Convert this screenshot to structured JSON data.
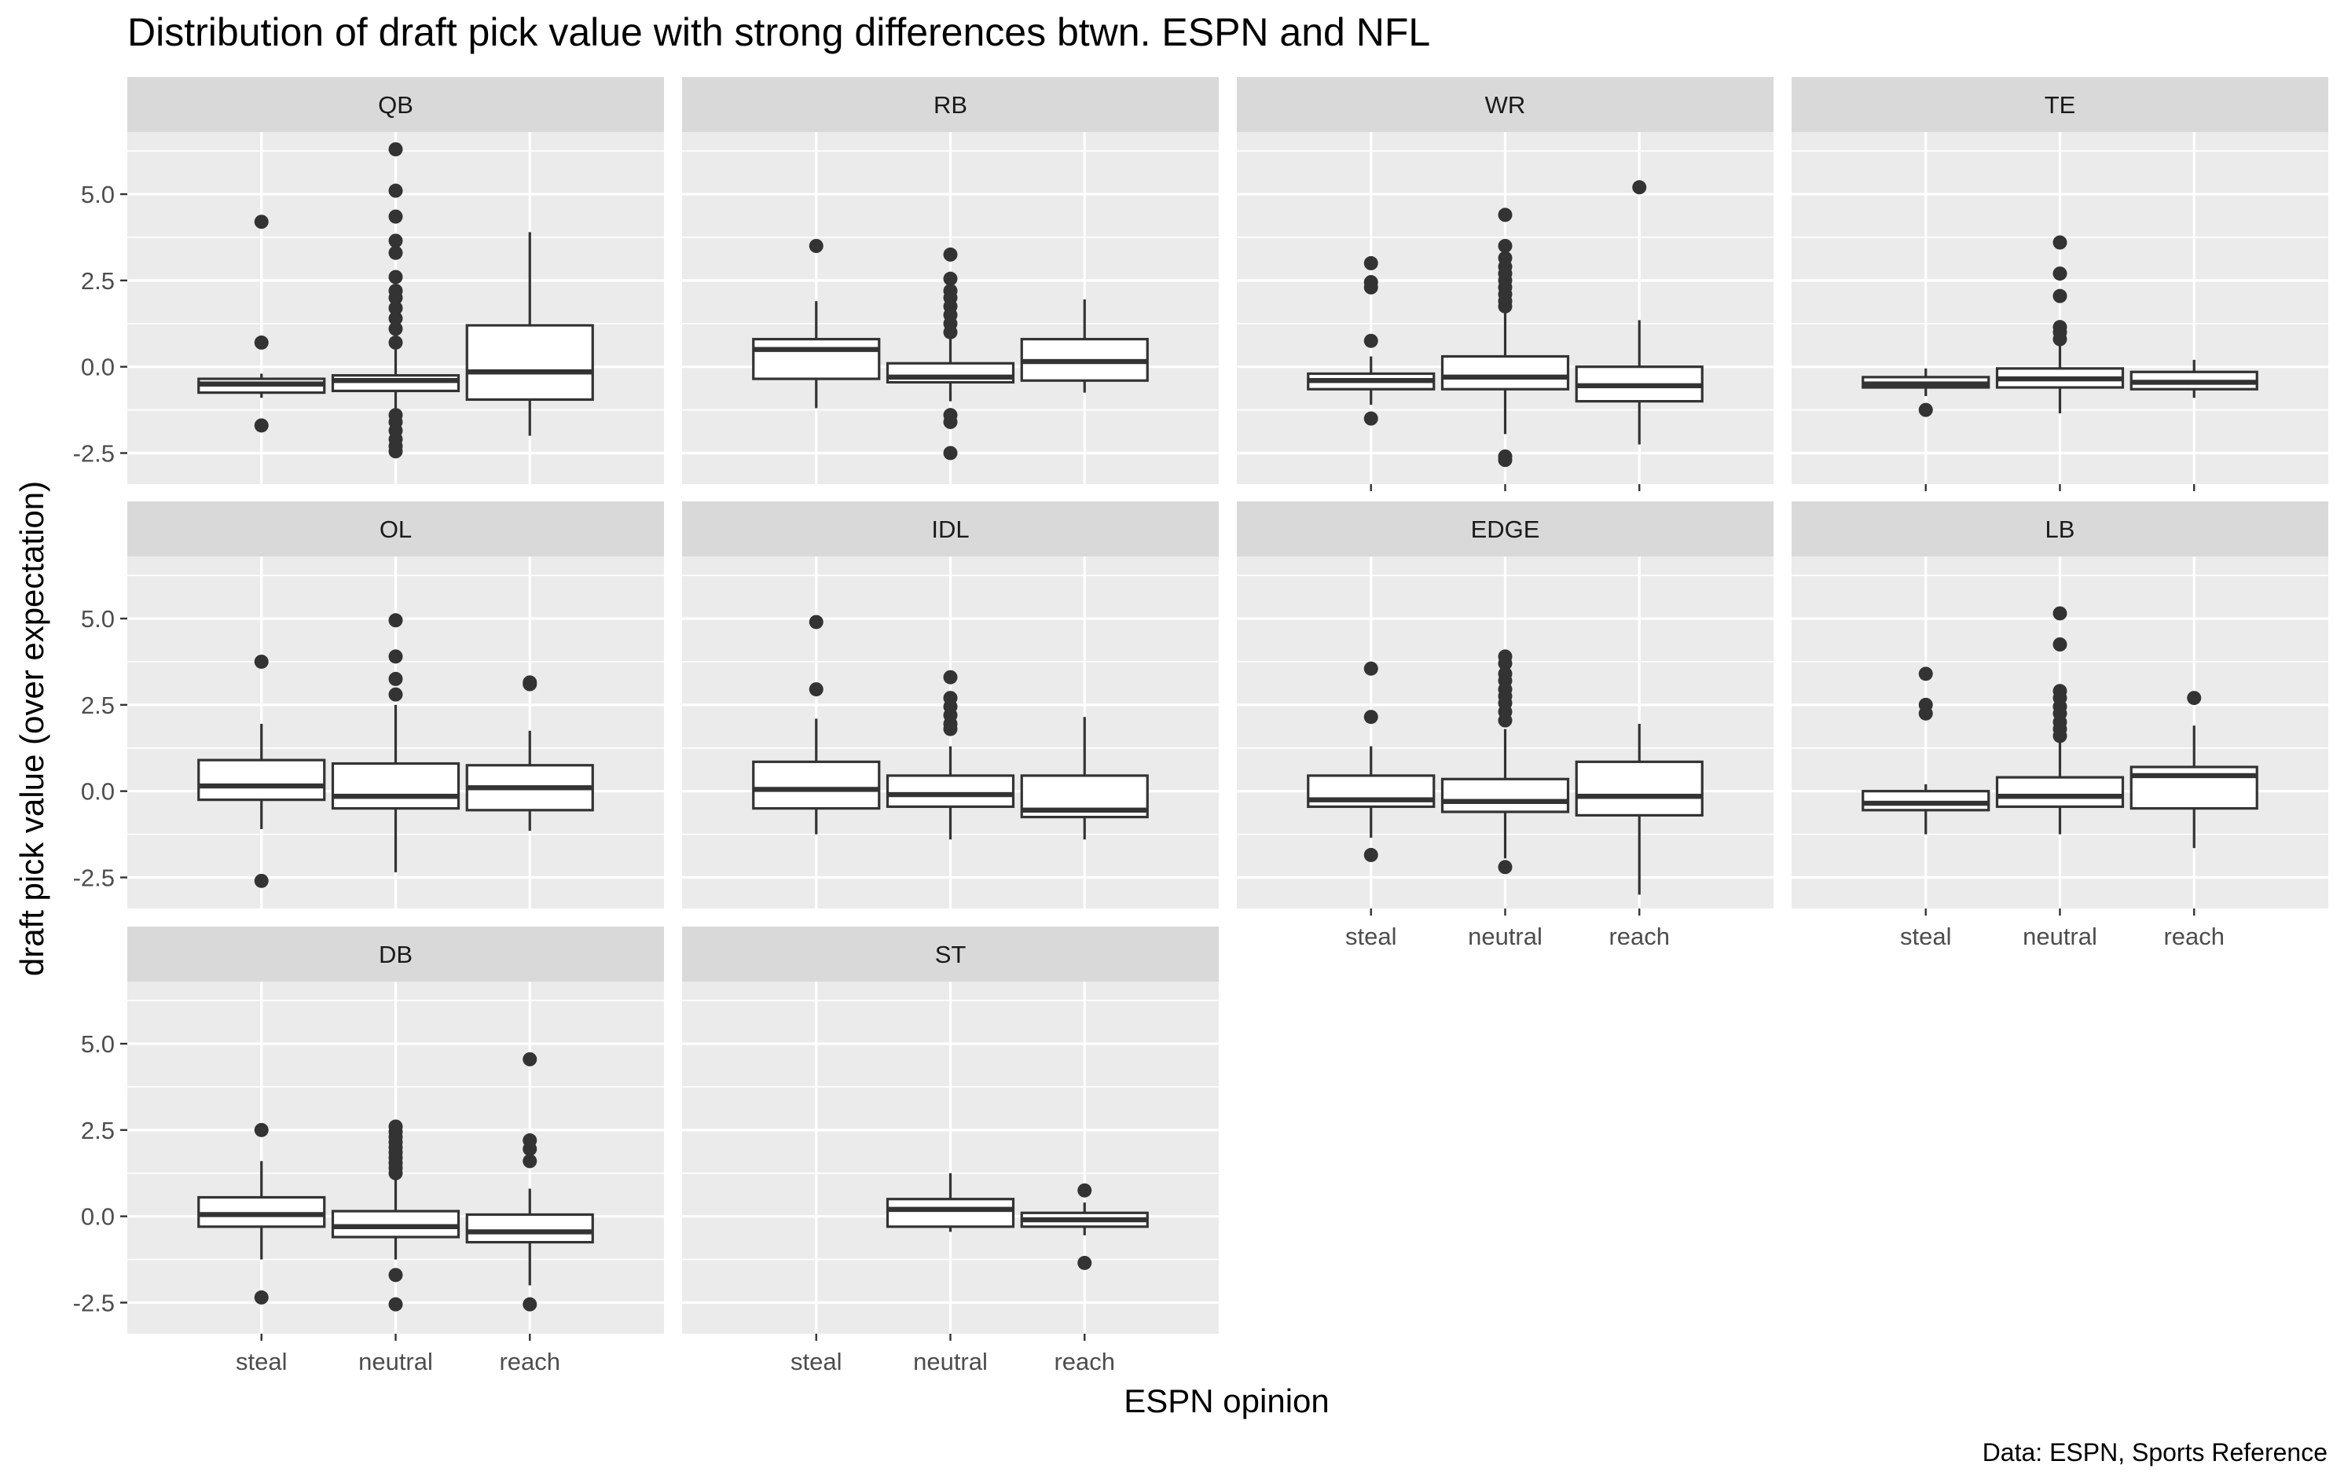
{
  "chart_data": {
    "type": "boxplot",
    "title": "Distribution of draft pick value with strong differences btwn. ESPN and NFL",
    "xlabel": "ESPN opinion",
    "ylabel": "draft pick value (over expectation)",
    "caption": "Data: ESPN, Sports Reference",
    "categories": [
      "steal",
      "neutral",
      "reach"
    ],
    "y_ticks": [
      -2.5,
      0.0,
      2.5,
      5.0
    ],
    "y_tick_labels": [
      "-2.5",
      "0.0",
      "2.5",
      "5.0"
    ],
    "ylim": [
      -3.4,
      6.8
    ],
    "grid": true,
    "facet_layout": {
      "columns": 4,
      "rows": 3
    },
    "facets": [
      {
        "name": "QB",
        "row": 0,
        "col": 0,
        "show_x_labels": false,
        "boxes": [
          {
            "category": "steal",
            "lower_whisker": -0.9,
            "q1": -0.75,
            "median": -0.5,
            "q3": -0.35,
            "upper_whisker": -0.2,
            "outliers": [
              4.2,
              0.7,
              -1.7
            ]
          },
          {
            "category": "neutral",
            "lower_whisker": -1.2,
            "q1": -0.7,
            "median": -0.4,
            "q3": -0.25,
            "upper_whisker": 0.5,
            "outliers": [
              6.3,
              5.1,
              4.35,
              3.65,
              3.3,
              2.6,
              2.2,
              2.0,
              1.7,
              1.4,
              1.1,
              0.7,
              -1.4,
              -1.6,
              -1.85,
              -2.1,
              -2.3,
              -2.45
            ]
          },
          {
            "category": "reach",
            "lower_whisker": -2.0,
            "q1": -0.95,
            "median": -0.15,
            "q3": 1.2,
            "upper_whisker": 3.9,
            "outliers": []
          }
        ]
      },
      {
        "name": "RB",
        "row": 0,
        "col": 1,
        "show_x_labels": false,
        "boxes": [
          {
            "category": "steal",
            "lower_whisker": -1.2,
            "q1": -0.35,
            "median": 0.5,
            "q3": 0.8,
            "upper_whisker": 1.9,
            "outliers": [
              3.5
            ]
          },
          {
            "category": "neutral",
            "lower_whisker": -1.0,
            "q1": -0.45,
            "median": -0.3,
            "q3": 0.1,
            "upper_whisker": 0.8,
            "outliers": [
              3.25,
              2.55,
              2.2,
              2.0,
              1.75,
              1.5,
              1.25,
              1.0,
              -1.4,
              -1.6,
              -2.5
            ]
          },
          {
            "category": "reach",
            "lower_whisker": -0.75,
            "q1": -0.4,
            "median": 0.15,
            "q3": 0.8,
            "upper_whisker": 1.95,
            "outliers": []
          }
        ]
      },
      {
        "name": "WR",
        "row": 0,
        "col": 2,
        "show_x_labels": true,
        "boxes": [
          {
            "category": "steal",
            "lower_whisker": -1.1,
            "q1": -0.65,
            "median": -0.4,
            "q3": -0.2,
            "upper_whisker": 0.3,
            "outliers": [
              3.0,
              2.45,
              2.3,
              0.75,
              -1.5
            ]
          },
          {
            "category": "neutral",
            "lower_whisker": -1.95,
            "q1": -0.65,
            "median": -0.3,
            "q3": 0.3,
            "upper_whisker": 1.6,
            "outliers": [
              4.4,
              3.5,
              3.15,
              2.9,
              2.7,
              2.5,
              2.3,
              2.1,
              1.9,
              1.75,
              -2.6,
              -2.7
            ]
          },
          {
            "category": "reach",
            "lower_whisker": -2.25,
            "q1": -1.0,
            "median": -0.55,
            "q3": 0.0,
            "upper_whisker": 1.35,
            "outliers": [
              5.2
            ]
          }
        ]
      },
      {
        "name": "TE",
        "row": 0,
        "col": 3,
        "show_x_labels": true,
        "boxes": [
          {
            "category": "steal",
            "lower_whisker": -0.85,
            "q1": -0.6,
            "median": -0.5,
            "q3": -0.3,
            "upper_whisker": -0.05,
            "outliers": [
              -1.25
            ]
          },
          {
            "category": "neutral",
            "lower_whisker": -1.35,
            "q1": -0.6,
            "median": -0.35,
            "q3": -0.05,
            "upper_whisker": 0.6,
            "outliers": [
              3.6,
              2.7,
              2.05,
              1.15,
              1.0,
              0.8
            ]
          },
          {
            "category": "reach",
            "lower_whisker": -0.9,
            "q1": -0.65,
            "median": -0.45,
            "q3": -0.15,
            "upper_whisker": 0.2,
            "outliers": []
          }
        ]
      },
      {
        "name": "OL",
        "row": 1,
        "col": 0,
        "show_x_labels": false,
        "boxes": [
          {
            "category": "steal",
            "lower_whisker": -1.1,
            "q1": -0.25,
            "median": 0.15,
            "q3": 0.9,
            "upper_whisker": 1.95,
            "outliers": [
              3.75,
              -2.6
            ]
          },
          {
            "category": "neutral",
            "lower_whisker": -2.35,
            "q1": -0.5,
            "median": -0.15,
            "q3": 0.8,
            "upper_whisker": 2.5,
            "outliers": [
              4.95,
              3.9,
              3.25,
              2.8
            ]
          },
          {
            "category": "reach",
            "lower_whisker": -1.15,
            "q1": -0.55,
            "median": 0.1,
            "q3": 0.75,
            "upper_whisker": 1.75,
            "outliers": [
              3.15,
              3.1
            ]
          }
        ]
      },
      {
        "name": "IDL",
        "row": 1,
        "col": 1,
        "show_x_labels": false,
        "boxes": [
          {
            "category": "steal",
            "lower_whisker": -1.25,
            "q1": -0.5,
            "median": 0.05,
            "q3": 0.85,
            "upper_whisker": 2.1,
            "outliers": [
              4.9,
              2.95
            ]
          },
          {
            "category": "neutral",
            "lower_whisker": -1.4,
            "q1": -0.45,
            "median": -0.1,
            "q3": 0.45,
            "upper_whisker": 1.3,
            "outliers": [
              3.3,
              2.7,
              2.45,
              2.2,
              1.95,
              1.8
            ]
          },
          {
            "category": "reach",
            "lower_whisker": -1.4,
            "q1": -0.75,
            "median": -0.55,
            "q3": 0.45,
            "upper_whisker": 2.15,
            "outliers": []
          }
        ]
      },
      {
        "name": "EDGE",
        "row": 1,
        "col": 2,
        "show_x_labels": true,
        "boxes": [
          {
            "category": "steal",
            "lower_whisker": -1.35,
            "q1": -0.45,
            "median": -0.25,
            "q3": 0.45,
            "upper_whisker": 1.3,
            "outliers": [
              3.55,
              2.15,
              -1.85
            ]
          },
          {
            "category": "neutral",
            "lower_whisker": -1.95,
            "q1": -0.6,
            "median": -0.3,
            "q3": 0.35,
            "upper_whisker": 1.8,
            "outliers": [
              3.9,
              3.7,
              3.4,
              3.2,
              2.95,
              2.75,
              2.55,
              2.3,
              2.05,
              -2.2
            ]
          },
          {
            "category": "reach",
            "lower_whisker": -3.0,
            "q1": -0.7,
            "median": -0.15,
            "q3": 0.85,
            "upper_whisker": 1.95,
            "outliers": []
          }
        ]
      },
      {
        "name": "LB",
        "row": 1,
        "col": 3,
        "show_x_labels": true,
        "boxes": [
          {
            "category": "steal",
            "lower_whisker": -1.25,
            "q1": -0.55,
            "median": -0.35,
            "q3": 0.0,
            "upper_whisker": 0.2,
            "outliers": [
              3.4,
              2.5,
              2.25
            ]
          },
          {
            "category": "neutral",
            "lower_whisker": -1.25,
            "q1": -0.45,
            "median": -0.15,
            "q3": 0.4,
            "upper_whisker": 1.45,
            "outliers": [
              5.15,
              4.25,
              2.9,
              2.7,
              2.45,
              2.25,
              2.0,
              1.8,
              1.6
            ]
          },
          {
            "category": "reach",
            "lower_whisker": -1.65,
            "q1": -0.5,
            "median": 0.45,
            "q3": 0.7,
            "upper_whisker": 1.9,
            "outliers": [
              2.7
            ]
          }
        ]
      },
      {
        "name": "DB",
        "row": 2,
        "col": 0,
        "show_x_labels": true,
        "boxes": [
          {
            "category": "steal",
            "lower_whisker": -1.25,
            "q1": -0.3,
            "median": 0.05,
            "q3": 0.55,
            "upper_whisker": 1.6,
            "outliers": [
              2.5,
              -2.35
            ]
          },
          {
            "category": "neutral",
            "lower_whisker": -1.25,
            "q1": -0.6,
            "median": -0.3,
            "q3": 0.15,
            "upper_whisker": 1.1,
            "outliers": [
              2.6,
              2.45,
              2.3,
              2.15,
              2.0,
              1.85,
              1.7,
              1.55,
              1.4,
              1.25,
              -1.7,
              -2.55
            ]
          },
          {
            "category": "reach",
            "lower_whisker": -2.0,
            "q1": -0.75,
            "median": -0.45,
            "q3": 0.05,
            "upper_whisker": 0.8,
            "outliers": [
              4.55,
              2.2,
              1.95,
              1.6,
              -2.55
            ]
          }
        ]
      },
      {
        "name": "ST",
        "row": 2,
        "col": 1,
        "show_x_labels": true,
        "boxes": [
          {
            "category": "neutral",
            "lower_whisker": -0.45,
            "q1": -0.3,
            "median": 0.2,
            "q3": 0.5,
            "upper_whisker": 1.25,
            "outliers": []
          },
          {
            "category": "reach",
            "lower_whisker": -0.55,
            "q1": -0.3,
            "median": -0.1,
            "q3": 0.1,
            "upper_whisker": 0.4,
            "outliers": [
              0.75,
              -1.35
            ]
          }
        ]
      }
    ]
  }
}
